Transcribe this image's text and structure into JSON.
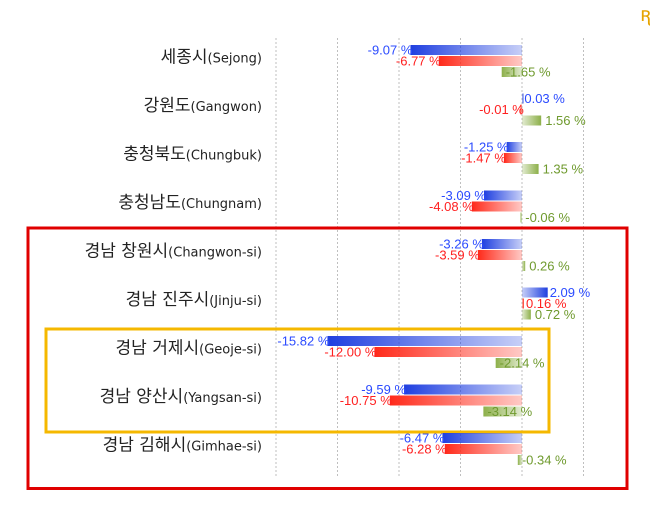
{
  "chart_data": {
    "type": "bar",
    "orientation": "horizontal",
    "categories": [
      {
        "ko": "세종시",
        "en": "(Sejong)"
      },
      {
        "ko": "강원도",
        "en": "(Gangwon)"
      },
      {
        "ko": "충청북도",
        "en": "(Chungbuk)"
      },
      {
        "ko": "충청남도",
        "en": "(Chungnam)"
      },
      {
        "ko": "경남 창원시",
        "en": "(Changwon-si)"
      },
      {
        "ko": "경남 진주시",
        "en": "(Jinju-si)"
      },
      {
        "ko": "경남 거제시",
        "en": "(Geoje-si)"
      },
      {
        "ko": "경남 양산시",
        "en": "(Yangsan-si)"
      },
      {
        "ko": "경남 김해시",
        "en": "(Gimhae-si)"
      }
    ],
    "series": [
      {
        "color": "#1f3fe0",
        "label_color": "#2b4bff",
        "values": [
          -9.07,
          0.03,
          -1.25,
          -3.09,
          -3.26,
          2.09,
          -15.82,
          -9.59,
          -6.47
        ],
        "labels": [
          "-9.07 %",
          "0.03 %",
          "-1.25 %",
          "-3.09 %",
          "-3.26 %",
          "2.09 %",
          "-15.82 %",
          "-9.59 %",
          "-6.47 %"
        ]
      },
      {
        "color": "#ff2a1a",
        "label_color": "#ff2020",
        "values": [
          -6.77,
          -0.01,
          -1.47,
          -4.08,
          -3.59,
          0.16,
          -12.0,
          -10.75,
          -6.28
        ],
        "labels": [
          "-6.77 %",
          "-0.01 %",
          "-1.47 %",
          "-4.08 %",
          "-3.59 %",
          "0.16 %",
          "-12.00 %",
          "-10.75 %",
          "-6.28 %"
        ]
      },
      {
        "color": "#8db04a",
        "label_color": "#6f9a2e",
        "values": [
          -1.65,
          1.56,
          1.35,
          -0.06,
          0.26,
          0.72,
          -2.14,
          -3.14,
          -0.34
        ],
        "labels": [
          "-1.65 %",
          "1.56 %",
          "1.35 %",
          "-0.06 %",
          "0.26 %",
          "0.72 %",
          "-2.14 %",
          "-3.14 %",
          "-0.34 %"
        ]
      }
    ],
    "xlim": [
      -20,
      5
    ],
    "grid": true,
    "highlight_boxes": [
      {
        "color": "#e00000",
        "from_category": 4,
        "to_category": 8
      },
      {
        "color": "#f5b800",
        "from_category": 6,
        "to_category": 7
      }
    ]
  },
  "decorations": {
    "corner_mark_text": "ꭆ",
    "corner_mark_color": "#e6a400"
  }
}
